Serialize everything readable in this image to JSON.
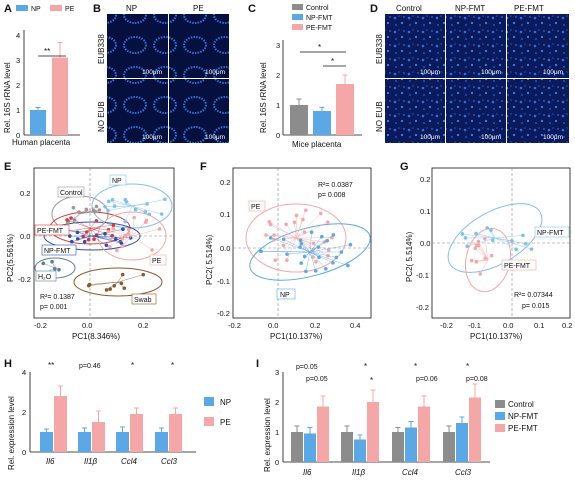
{
  "panels": {
    "A": {
      "label": "A",
      "legend": [
        "NP",
        "PE"
      ],
      "ylabel": "Rel. 16S rRNA level",
      "yticks": [
        "0",
        "1",
        "2",
        "3",
        "4"
      ],
      "xlabel": "Human placenta",
      "sig": "**"
    },
    "B": {
      "label": "B",
      "cols": [
        "NP",
        "PE"
      ],
      "rows": [
        "EUB338",
        "NO EUB"
      ],
      "scale": "100μm"
    },
    "C": {
      "label": "C",
      "legend": [
        "Control",
        "NP-FMT",
        "PE-FMT"
      ],
      "ylabel": "Rel. 16S rRNA level",
      "yticks": [
        "0",
        "1",
        "2",
        "3"
      ],
      "xlabel": "Mice placenta",
      "sig": [
        "*",
        "*"
      ]
    },
    "D": {
      "label": "D",
      "cols": [
        "Control",
        "NP-FMT",
        "PE-FMT"
      ],
      "rows": [
        "EUB338",
        "NO EUB"
      ],
      "scale": "100μm"
    },
    "E": {
      "label": "E",
      "xlabel": "PC1(8.346%)",
      "ylabel": "PC2(5.561%)",
      "xticks": [
        "-0.2",
        "0.0",
        "0.2"
      ],
      "yticks": [
        "0.2",
        "0.0",
        "-0.2"
      ],
      "groups": [
        "Control",
        "NP",
        "PE-FMT",
        "NP-FMT",
        "PE",
        "H₂O",
        "Swab"
      ],
      "r2": "R²= 0.1387",
      "p": "p= 0.001"
    },
    "F": {
      "label": "F",
      "xlabel": "PC1(10.137%)",
      "ylabel": "PC2( 5.514%)",
      "xticks": [
        "-0.2",
        "0.0",
        "0.2",
        "0.4"
      ],
      "yticks": [
        "0.2",
        "0.1",
        "0.0",
        "-0.1",
        "-0.2"
      ],
      "groups": [
        "PE",
        "NP"
      ],
      "r2": "R²= 0.0387",
      "p": "p= 0.008"
    },
    "G": {
      "label": "G",
      "xlabel": "PC1(10.137%)",
      "ylabel": "PC2( 5.514%)",
      "xticks": [
        "-0.2",
        "-0.1",
        "0.0",
        "0.1",
        "0.2"
      ],
      "yticks": [
        "0.2",
        "0.1",
        "0.0",
        "-0.1",
        "-0.2"
      ],
      "groups": [
        "NP-FMT",
        "PE-FMT"
      ],
      "r2": "R²= 0.07344",
      "p": "p= 0.015"
    },
    "H": {
      "label": "H",
      "ylabel": "Rel. expression level",
      "yticks": [
        "0",
        "2",
        "4"
      ],
      "genes": [
        "Il6",
        "Il1β",
        "Ccl4",
        "Ccl3"
      ],
      "legend": [
        "NP",
        "PE"
      ],
      "sig": [
        "**",
        "p=0.46",
        "*",
        "*"
      ]
    },
    "I": {
      "label": "I",
      "ylabel": "Rel. expression level",
      "yticks": [
        "0",
        "1",
        "2",
        "3"
      ],
      "genes": [
        "Il6",
        "Il1β",
        "Ccl4",
        "Ccl3"
      ],
      "legend": [
        "Control",
        "NP-FMT",
        "PE-FMT"
      ],
      "sig_top": [
        "p=0.05",
        "*",
        "*",
        "*"
      ],
      "sig_low": [
        "p=0.05",
        "*",
        "p=0.06",
        "p=0.08"
      ]
    }
  },
  "chart_data": [
    {
      "type": "bar",
      "panel": "A",
      "categories": [
        "NP",
        "PE"
      ],
      "values": [
        1.0,
        3.1
      ],
      "errors": [
        0.1,
        0.6
      ],
      "ylabel": "Rel. 16S rRNA level",
      "xlabel": "Human placenta",
      "ylim": [
        0,
        4
      ],
      "colors": [
        "#5aa9e6",
        "#f4a7a6"
      ]
    },
    {
      "type": "bar",
      "panel": "C",
      "categories": [
        "Control",
        "NP-FMT",
        "PE-FMT"
      ],
      "values": [
        1.0,
        0.8,
        1.7
      ],
      "errors": [
        0.2,
        0.12,
        0.3
      ],
      "ylabel": "Rel. 16S rRNA level",
      "xlabel": "Mice placenta",
      "ylim": [
        0,
        3
      ],
      "colors": [
        "#8c8c8c",
        "#5aa9e6",
        "#f4a7a6"
      ]
    },
    {
      "type": "bar",
      "panel": "H",
      "categories": [
        "Il6",
        "Il1β",
        "Ccl4",
        "Ccl3"
      ],
      "series": [
        {
          "name": "NP",
          "values": [
            1.0,
            1.0,
            1.0,
            1.0
          ],
          "errors": [
            0.15,
            0.2,
            0.25,
            0.2
          ]
        },
        {
          "name": "PE",
          "values": [
            2.8,
            1.5,
            1.9,
            1.9
          ],
          "errors": [
            0.5,
            0.55,
            0.3,
            0.3
          ]
        }
      ],
      "ylabel": "Rel. expression level",
      "ylim": [
        0,
        4
      ],
      "colors": [
        "#5aa9e6",
        "#f4a7a6"
      ]
    },
    {
      "type": "bar",
      "panel": "I",
      "categories": [
        "Il6",
        "Il1β",
        "Ccl4",
        "Ccl3"
      ],
      "series": [
        {
          "name": "Control",
          "values": [
            1.0,
            1.0,
            1.0,
            1.0
          ],
          "errors": [
            0.2,
            0.2,
            0.15,
            0.2
          ]
        },
        {
          "name": "NP-FMT",
          "values": [
            0.95,
            0.75,
            1.15,
            1.3
          ],
          "errors": [
            0.2,
            0.15,
            0.2,
            0.2
          ]
        },
        {
          "name": "PE-FMT",
          "values": [
            1.85,
            2.0,
            1.85,
            2.15
          ],
          "errors": [
            0.35,
            0.4,
            0.35,
            0.45
          ]
        }
      ],
      "ylabel": "Rel. expression level",
      "ylim": [
        0,
        3
      ],
      "colors": [
        "#8c8c8c",
        "#5aa9e6",
        "#f4a7a6"
      ]
    }
  ]
}
